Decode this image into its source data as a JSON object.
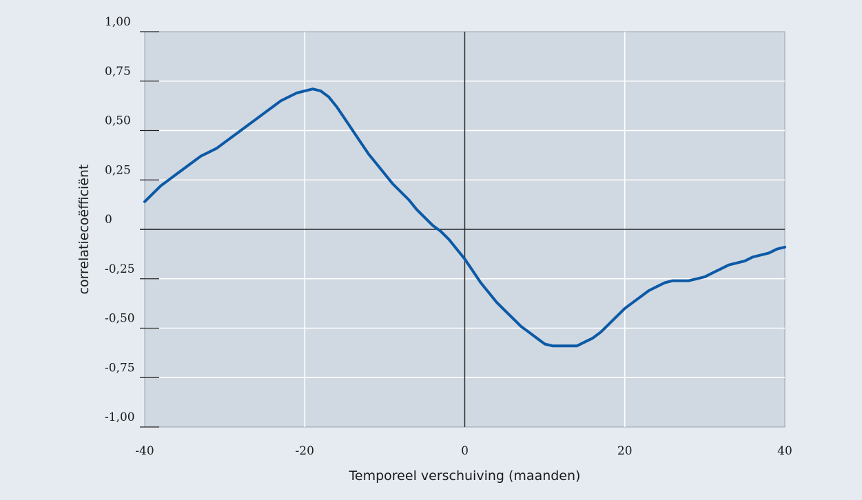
{
  "chart_data": {
    "type": "line",
    "title": "",
    "xlabel": "Temporeel verschuiving (maanden)",
    "ylabel": "correlatiecoëfficiënt",
    "xlim": [
      -40,
      40
    ],
    "ylim": [
      -1.0,
      1.0
    ],
    "x_ticks": [
      -40,
      -20,
      0,
      20,
      40
    ],
    "x_tick_labels": [
      "-40",
      "-20",
      "0",
      "20",
      "40"
    ],
    "y_ticks": [
      1.0,
      0.75,
      0.5,
      0.25,
      0,
      -0.25,
      -0.5,
      -0.75,
      -1.0
    ],
    "y_tick_labels": [
      "1,00",
      "0,75",
      "0,50",
      "0,25",
      "0",
      "-0,25",
      "-0,50",
      "-0,75",
      "-1,00"
    ],
    "grid": true,
    "series": [
      {
        "x": [
          -40,
          -39,
          -38,
          -37,
          -36,
          -35,
          -34,
          -33,
          -32,
          -31,
          -30,
          -29,
          -28,
          -27,
          -26,
          -25,
          -24,
          -23,
          -22,
          -21,
          -20,
          -19,
          -18,
          -17,
          -16,
          -15,
          -14,
          -13,
          -12,
          -11,
          -10,
          -9,
          -8,
          -7,
          -6,
          -5,
          -4,
          -3,
          -2,
          -1,
          0,
          1,
          2,
          3,
          4,
          5,
          6,
          7,
          8,
          9,
          10,
          11,
          12,
          13,
          14,
          15,
          16,
          17,
          18,
          19,
          20,
          21,
          22,
          23,
          24,
          25,
          26,
          27,
          28,
          29,
          30,
          31,
          32,
          33,
          34,
          35,
          36,
          37,
          38,
          39,
          40
        ],
        "values": [
          0.14,
          0.18,
          0.22,
          0.25,
          0.28,
          0.31,
          0.34,
          0.37,
          0.39,
          0.41,
          0.44,
          0.47,
          0.5,
          0.53,
          0.56,
          0.59,
          0.62,
          0.65,
          0.67,
          0.69,
          0.7,
          0.71,
          0.7,
          0.67,
          0.62,
          0.56,
          0.5,
          0.44,
          0.38,
          0.33,
          0.28,
          0.23,
          0.19,
          0.15,
          0.1,
          0.06,
          0.02,
          -0.01,
          -0.05,
          -0.1,
          -0.15,
          -0.21,
          -0.27,
          -0.32,
          -0.37,
          -0.41,
          -0.45,
          -0.49,
          -0.52,
          -0.55,
          -0.58,
          -0.59,
          -0.59,
          -0.59,
          -0.59,
          -0.57,
          -0.55,
          -0.52,
          -0.48,
          -0.44,
          -0.4,
          -0.37,
          -0.34,
          -0.31,
          -0.29,
          -0.27,
          -0.26,
          -0.26,
          -0.26,
          -0.25,
          -0.24,
          -0.22,
          -0.2,
          -0.18,
          -0.17,
          -0.16,
          -0.14,
          -0.13,
          -0.12,
          -0.1,
          -0.09
        ]
      }
    ],
    "colors": {
      "page_background": "#e6ebf2",
      "plot_background": "#d0d8e2",
      "grid": "#ffffff",
      "line": "#0c5aa6",
      "axis": "#222222"
    }
  }
}
